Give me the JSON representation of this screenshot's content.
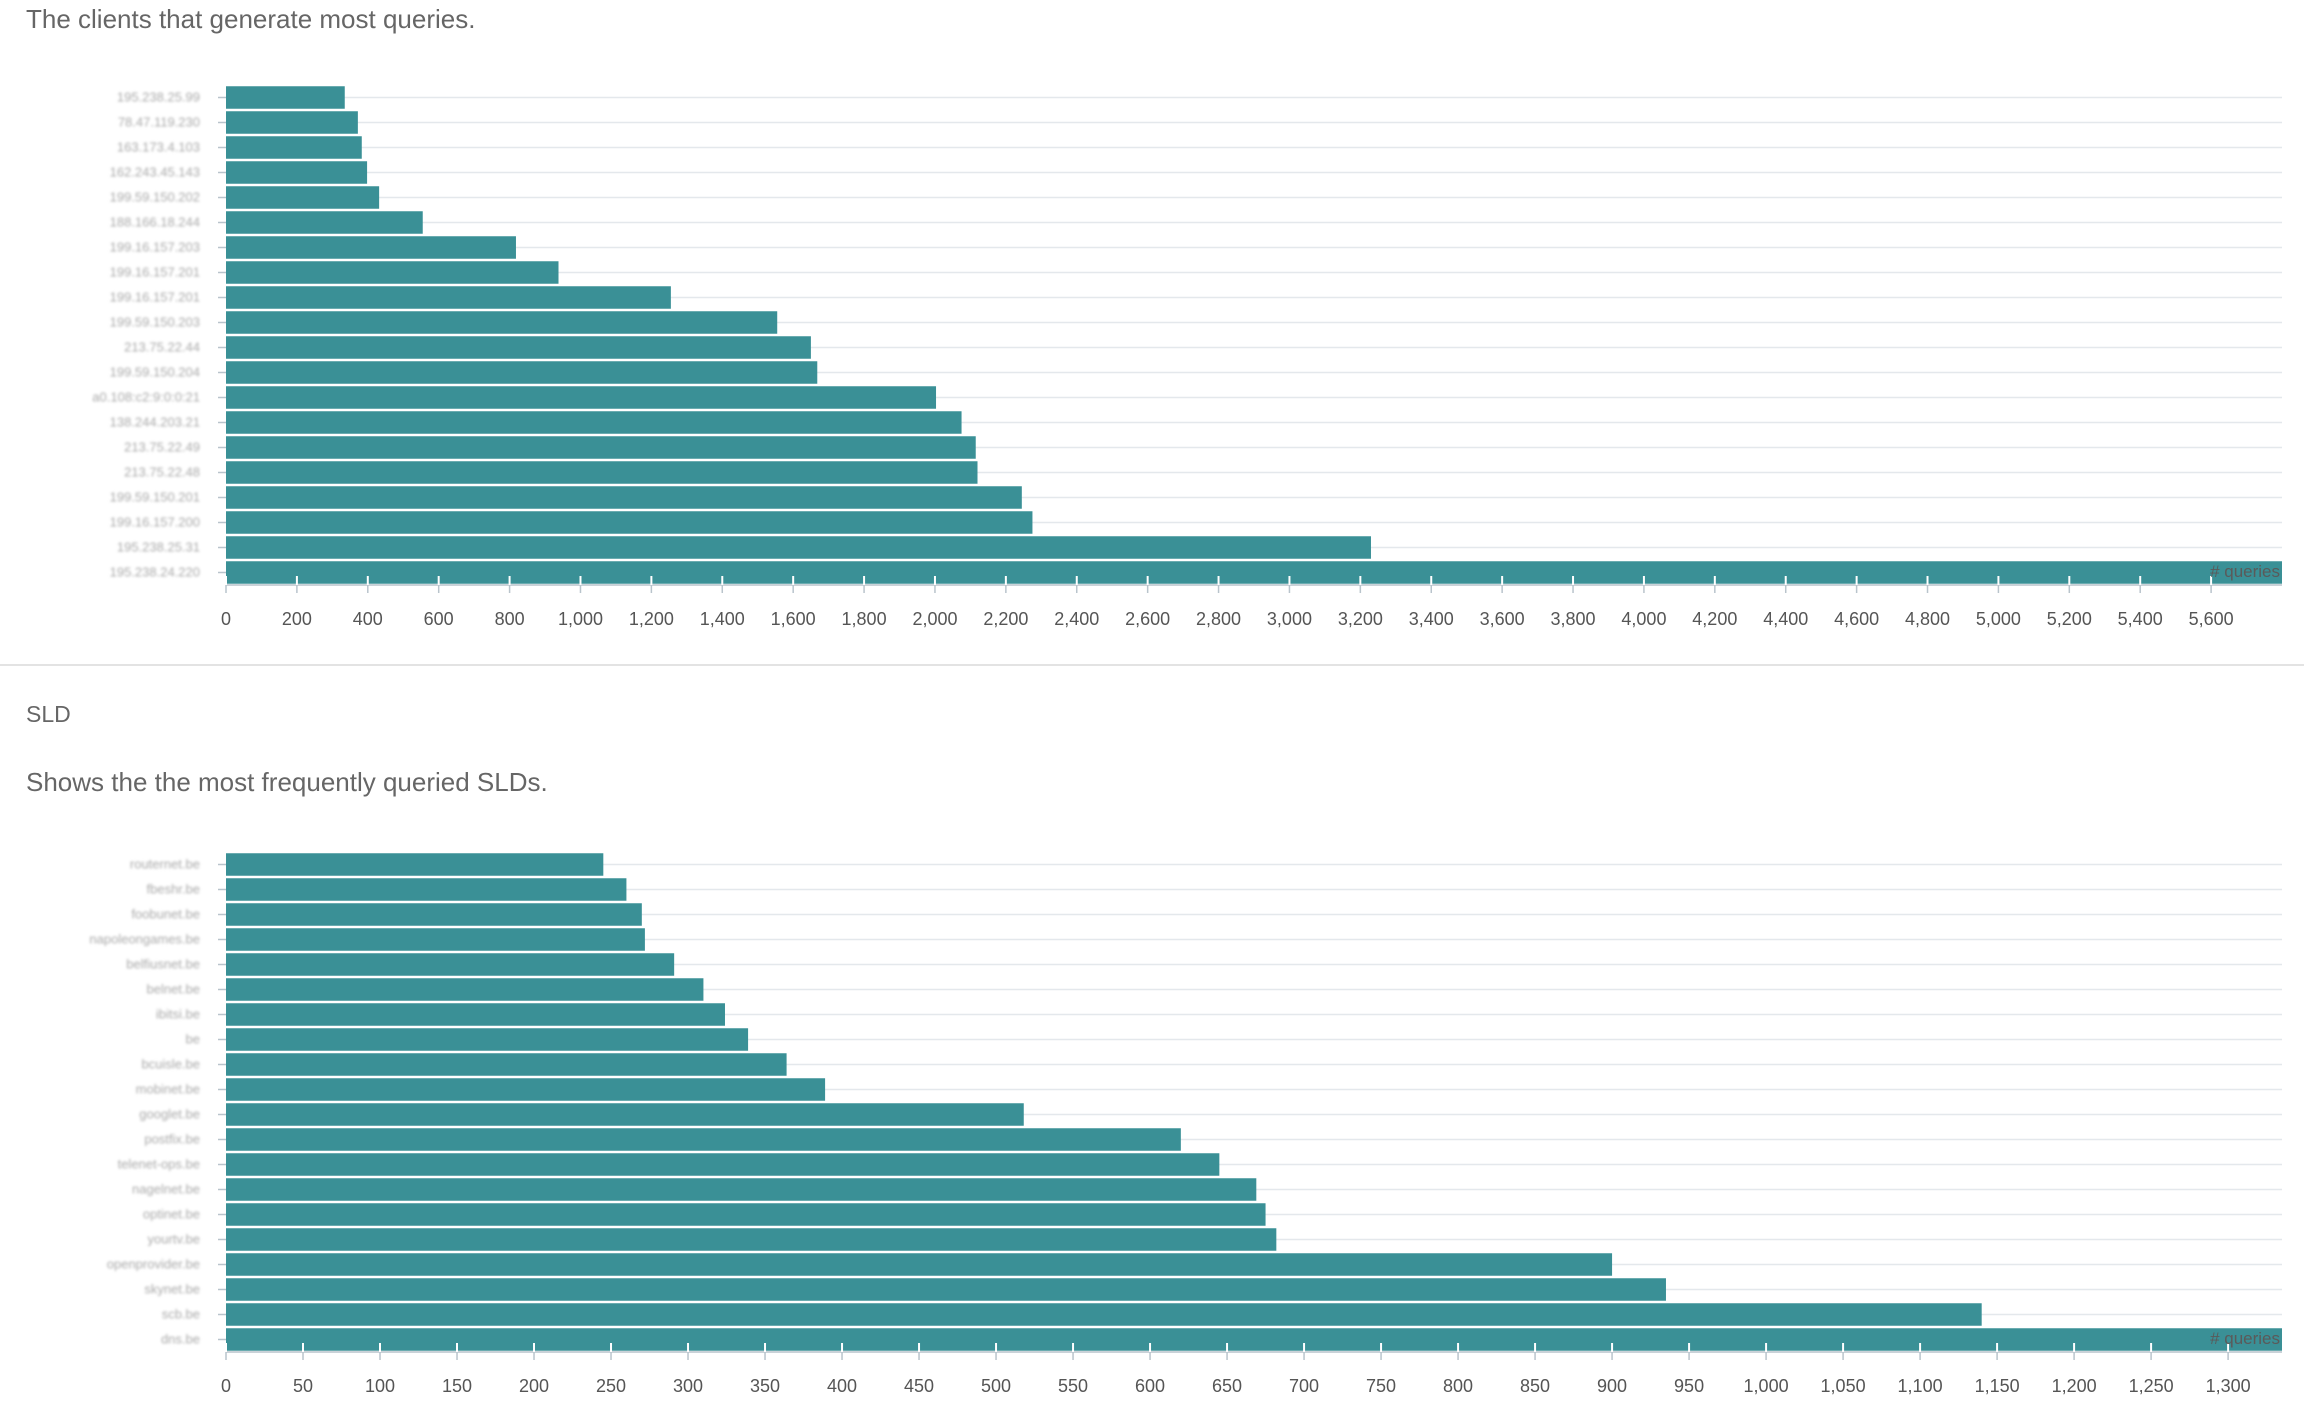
{
  "sections": {
    "clients": {
      "description": "The clients that generate most queries."
    },
    "sld": {
      "heading": "SLD",
      "description": "Shows the the most frequently queried SLDs."
    }
  },
  "colors": {
    "bar": "#3a9096",
    "grid": "#e4e8ec",
    "axis": "#b9c4cc"
  },
  "chart_data": [
    {
      "type": "bar",
      "orientation": "horizontal",
      "categories": [
        "195.238.25.99",
        "78.47.119.230",
        "163.173.4.103",
        "162.243.45.143",
        "199.59.150.202",
        "188.166.18.244",
        "199.16.157.203",
        "199.16.157.201",
        "199.16.157.201",
        "199.59.150.203",
        "213.75.22.44",
        "199.59.150.204",
        "a0.108:c2:9:0:0:21",
        "138.244.203.21",
        "213.75.22.49",
        "213.75.22.48",
        "199.59.150.201",
        "199.16.157.200",
        "195.238.25.31",
        "195.238.24.220"
      ],
      "values": [
        335,
        372,
        383,
        398,
        432,
        555,
        818,
        938,
        1255,
        1555,
        1650,
        1668,
        2003,
        2075,
        2115,
        2120,
        2245,
        2275,
        3230,
        5800
      ],
      "xlim": [
        0,
        5800
      ],
      "xticks": [
        "0",
        "200",
        "400",
        "600",
        "800",
        "1,000",
        "1,200",
        "1,400",
        "1,600",
        "1,800",
        "2,000",
        "2,200",
        "2,400",
        "2,600",
        "2,800",
        "3,000",
        "3,200",
        "3,400",
        "3,600",
        "3,800",
        "4,000",
        "4,200",
        "4,400",
        "4,600",
        "4,800",
        "5,000",
        "5,200",
        "5,400",
        "5,600"
      ],
      "unit_label": "# queries",
      "grid": true
    },
    {
      "type": "bar",
      "orientation": "horizontal",
      "categories": [
        "routernet.be",
        "fbeshr.be",
        "foobunet.be",
        "napoleongames.be",
        "belfiusnet.be",
        "belnet.be",
        "ibitsi.be",
        "be",
        "bcuisle.be",
        "mobinet.be",
        "googlet.be",
        "postfix.be",
        "telenet-ops.be",
        "nagelnet.be",
        "optinet.be",
        "yourtv.be",
        "openprovider.be",
        "skynet.be",
        "scb.be",
        "dns.be"
      ],
      "values": [
        245,
        260,
        270,
        272,
        291,
        310,
        324,
        339,
        364,
        389,
        518,
        620,
        645,
        669,
        675,
        682,
        900,
        935,
        1140,
        1335
      ],
      "xlim": [
        0,
        1335
      ],
      "xticks": [
        "0",
        "50",
        "100",
        "150",
        "200",
        "250",
        "300",
        "350",
        "400",
        "450",
        "500",
        "550",
        "600",
        "650",
        "700",
        "750",
        "800",
        "850",
        "900",
        "950",
        "1,000",
        "1,050",
        "1,100",
        "1,150",
        "1,200",
        "1,250",
        "1,300"
      ],
      "unit_label": "# queries",
      "grid": true
    }
  ]
}
